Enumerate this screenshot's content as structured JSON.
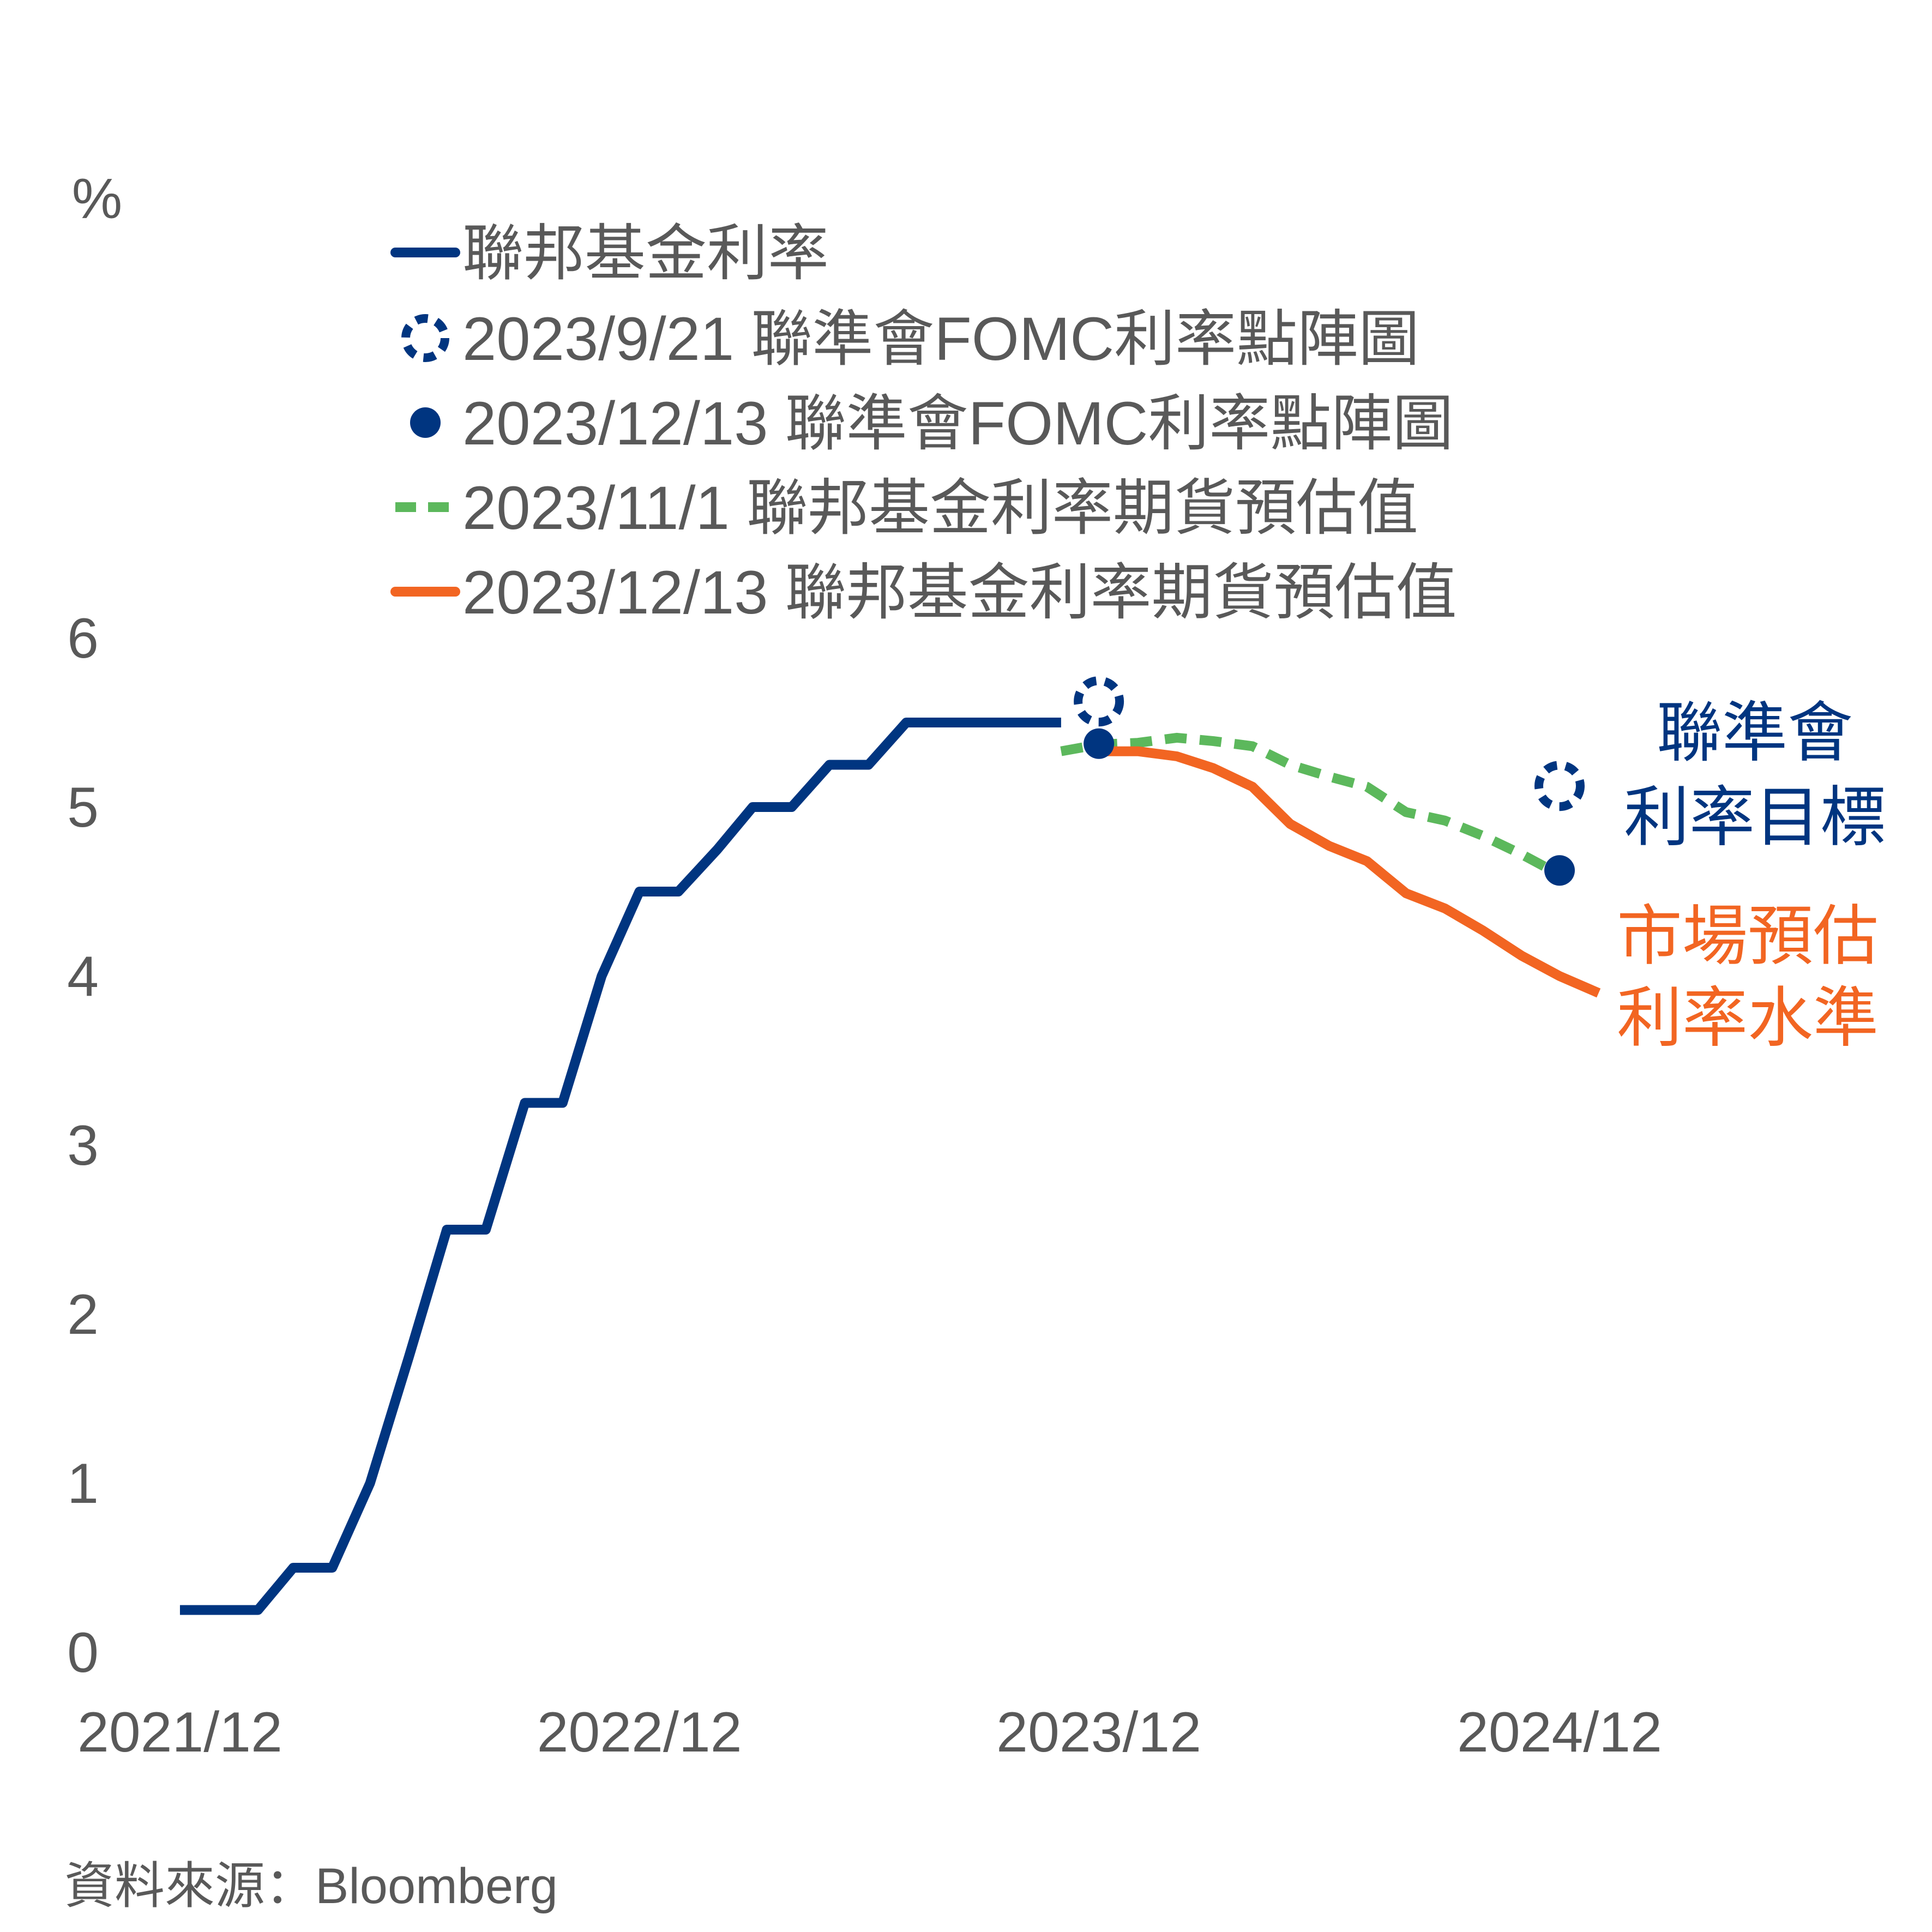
{
  "chart_data": {
    "type": "line",
    "ylabel": "%",
    "ylim": [
      0,
      6
    ],
    "y_ticks": [
      "0",
      "1",
      "2",
      "3",
      "4",
      "5",
      "6"
    ],
    "x_tick_labels": [
      "2021/12",
      "2022/12",
      "2023/12",
      "2024/12"
    ],
    "x_tick_dates": [
      "2021-12-01",
      "2022-12-01",
      "2023-12-01",
      "2024-12-01"
    ],
    "legend": [
      "聯邦基金利率",
      "2023/9/21 聯準會FOMC利率點陣圖",
      "2023/12/13 聯準會FOMC利率點陣圖",
      "2023/11/1 聯邦基金利率期貨預估值",
      "2023/12/13 聯邦基金利率期貨預估值"
    ],
    "series": [
      {
        "name": "聯邦基金利率",
        "style": "solid",
        "color": "#003580",
        "points": [
          [
            "2021-12-01",
            0.25
          ],
          [
            "2022-02-01",
            0.25
          ],
          [
            "2022-03-01",
            0.5
          ],
          [
            "2022-04-01",
            0.5
          ],
          [
            "2022-05-01",
            1.0
          ],
          [
            "2022-06-01",
            1.75
          ],
          [
            "2022-07-01",
            2.5
          ],
          [
            "2022-08-01",
            2.5
          ],
          [
            "2022-09-01",
            3.25
          ],
          [
            "2022-10-01",
            3.25
          ],
          [
            "2022-11-01",
            4.0
          ],
          [
            "2022-12-01",
            4.5
          ],
          [
            "2023-01-01",
            4.5
          ],
          [
            "2023-02-01",
            4.75
          ],
          [
            "2023-03-01",
            5.0
          ],
          [
            "2023-04-01",
            5.0
          ],
          [
            "2023-05-01",
            5.25
          ],
          [
            "2023-06-01",
            5.25
          ],
          [
            "2023-07-01",
            5.5
          ],
          [
            "2023-11-01",
            5.5
          ]
        ]
      },
      {
        "name": "2023/11/1 聯邦基金利率期貨預估值",
        "style": "dashed",
        "color": "#5cb85c",
        "points": [
          [
            "2023-11-01",
            5.33
          ],
          [
            "2023-12-01",
            5.37
          ],
          [
            "2024-01-01",
            5.38
          ],
          [
            "2024-02-01",
            5.41
          ],
          [
            "2024-03-01",
            5.39
          ],
          [
            "2024-04-01",
            5.36
          ],
          [
            "2024-05-01",
            5.25
          ],
          [
            "2024-06-01",
            5.18
          ],
          [
            "2024-07-01",
            5.12
          ],
          [
            "2024-08-01",
            4.97
          ],
          [
            "2024-09-01",
            4.92
          ],
          [
            "2024-10-01",
            4.83
          ],
          [
            "2024-11-01",
            4.72
          ],
          [
            "2024-12-01",
            4.6
          ]
        ]
      },
      {
        "name": "2023/12/13 聯邦基金利率期貨預估值",
        "style": "solid",
        "color": "#f26522",
        "points": [
          [
            "2023-12-01",
            5.33
          ],
          [
            "2024-01-01",
            5.33
          ],
          [
            "2024-02-01",
            5.3
          ],
          [
            "2024-03-01",
            5.23
          ],
          [
            "2024-04-01",
            5.12
          ],
          [
            "2024-05-01",
            4.9
          ],
          [
            "2024-06-01",
            4.77
          ],
          [
            "2024-07-01",
            4.68
          ],
          [
            "2024-08-01",
            4.49
          ],
          [
            "2024-09-01",
            4.4
          ],
          [
            "2024-10-01",
            4.27
          ],
          [
            "2024-11-01",
            4.12
          ],
          [
            "2024-12-01",
            4.0
          ],
          [
            "2025-01-01",
            3.9
          ]
        ]
      }
    ],
    "markers": [
      {
        "name": "2023/9/21 聯準會FOMC利率點陣圖",
        "style": "dotted-ring",
        "color": "#003580",
        "points": [
          [
            "2023-12-01",
            5.625
          ],
          [
            "2024-12-01",
            5.125
          ]
        ]
      },
      {
        "name": "2023/12/13 聯準會FOMC利率點陣圖",
        "style": "filled",
        "color": "#003580",
        "points": [
          [
            "2023-12-01",
            5.375
          ],
          [
            "2024-12-01",
            4.625
          ]
        ]
      }
    ],
    "annotations": [
      {
        "lines": [
          "聯準會",
          "利率目標"
        ],
        "color": "#003580"
      },
      {
        "lines": [
          "市場預估",
          "利率水準"
        ],
        "color": "#f26522"
      }
    ],
    "source": "資料來源：Bloomberg",
    "grid": false,
    "legend_position": "top-left"
  }
}
